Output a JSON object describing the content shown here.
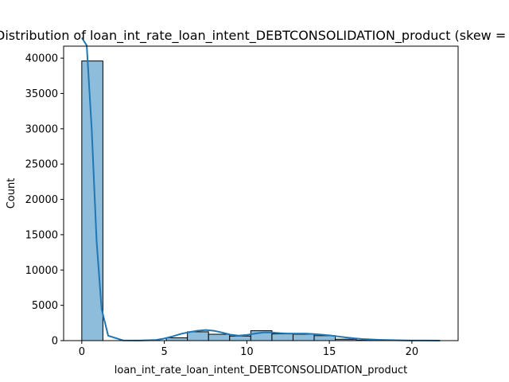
{
  "chart_data": {
    "type": "bar",
    "title": "Distribution of loan_int_rate_loan_intent_DEBTCONSOLIDATION_product (skew = ",
    "xlabel": "loan_int_rate_loan_intent_DEBTCONSOLIDATION_product",
    "ylabel": "Count",
    "xlim": [
      -1.1,
      22.8
    ],
    "ylim": [
      0,
      41700
    ],
    "x_ticks": [
      0,
      5,
      10,
      15,
      20
    ],
    "y_ticks": [
      0,
      5000,
      10000,
      15000,
      20000,
      25000,
      30000,
      35000,
      40000
    ],
    "bin_edges": [
      0.0,
      1.28,
      2.56,
      3.84,
      5.12,
      6.4,
      7.68,
      8.96,
      10.24,
      11.52,
      12.8,
      14.08,
      15.36,
      16.64,
      17.92,
      19.2,
      20.48,
      21.76
    ],
    "counts": [
      39600,
      0,
      0,
      0,
      400,
      1250,
      900,
      650,
      1400,
      950,
      900,
      700,
      200,
      60,
      30,
      10,
      5
    ],
    "kde": {
      "x": [
        0.0,
        0.3,
        0.6,
        0.9,
        1.2,
        1.6,
        2.5,
        3.5,
        4.5,
        5.0,
        5.5,
        6.0,
        6.5,
        7.0,
        7.5,
        8.0,
        8.5,
        9.0,
        9.5,
        10.0,
        10.5,
        11.0,
        11.5,
        12.0,
        12.5,
        13.0,
        13.5,
        14.0,
        14.5,
        15.0,
        15.5,
        16.0,
        16.5,
        17.0,
        18.0,
        19.0,
        20.0,
        21.0,
        21.7
      ],
      "y": [
        42900,
        41800,
        30000,
        14000,
        4500,
        700,
        30,
        10,
        80,
        300,
        600,
        950,
        1200,
        1400,
        1500,
        1400,
        1150,
        850,
        700,
        800,
        1000,
        1150,
        1150,
        1050,
        1000,
        1000,
        1000,
        950,
        850,
        750,
        600,
        450,
        320,
        220,
        110,
        50,
        20,
        8,
        3
      ]
    },
    "colors": {
      "bar_fill": "#8ebddc",
      "bar_edge": "#000000",
      "kde_line": "#1f77b4"
    },
    "grid": false,
    "legend": "none"
  }
}
